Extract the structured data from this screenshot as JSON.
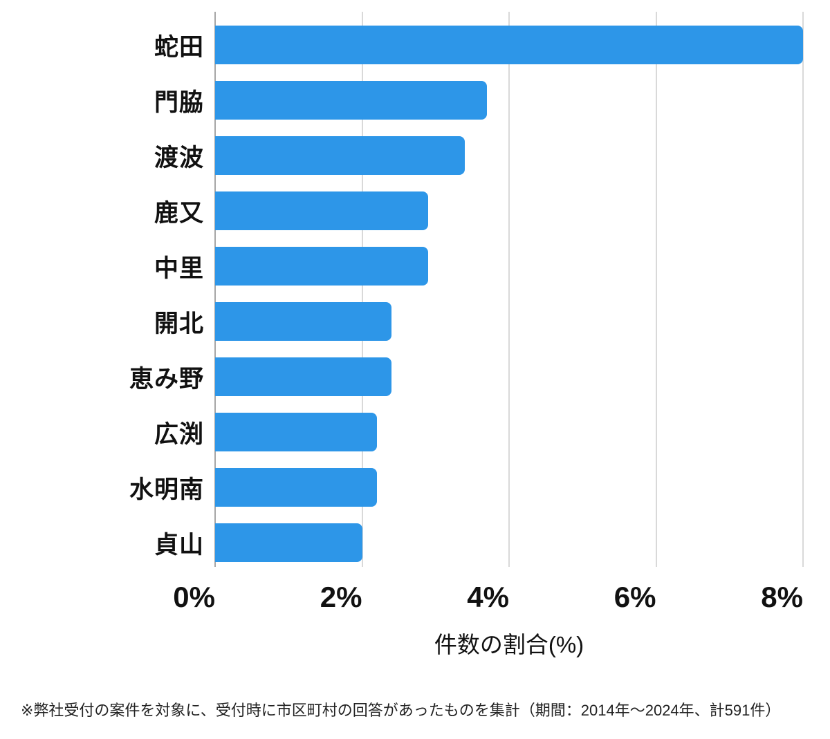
{
  "chart_data": {
    "type": "bar",
    "orientation": "horizontal",
    "title": "",
    "categories": [
      "蛇田",
      "門脇",
      "渡波",
      "鹿又",
      "中里",
      "開北",
      "恵み野",
      "広渕",
      "水明南",
      "貞山"
    ],
    "values": [
      8.0,
      3.7,
      3.4,
      2.9,
      2.9,
      2.4,
      2.4,
      2.2,
      2.2,
      2.0
    ],
    "unit": "%",
    "xlabel": "件数の割合(%)",
    "ylabel": "",
    "x_ticks": [
      "0%",
      "2%",
      "4%",
      "6%",
      "8%"
    ],
    "x_tick_values": [
      0,
      2,
      4,
      6,
      8
    ],
    "xlim": [
      0,
      8
    ],
    "grid": true,
    "legend": false,
    "bar_color": "#2d96e8",
    "gridline_color": "#d9d9d9",
    "axis_line_color": "#a6a6a6"
  },
  "footnote": "※弊社受付の案件を対象に、受付時に市区町村の回答があったものを集計（期間：2014年～2024年、計591件）"
}
